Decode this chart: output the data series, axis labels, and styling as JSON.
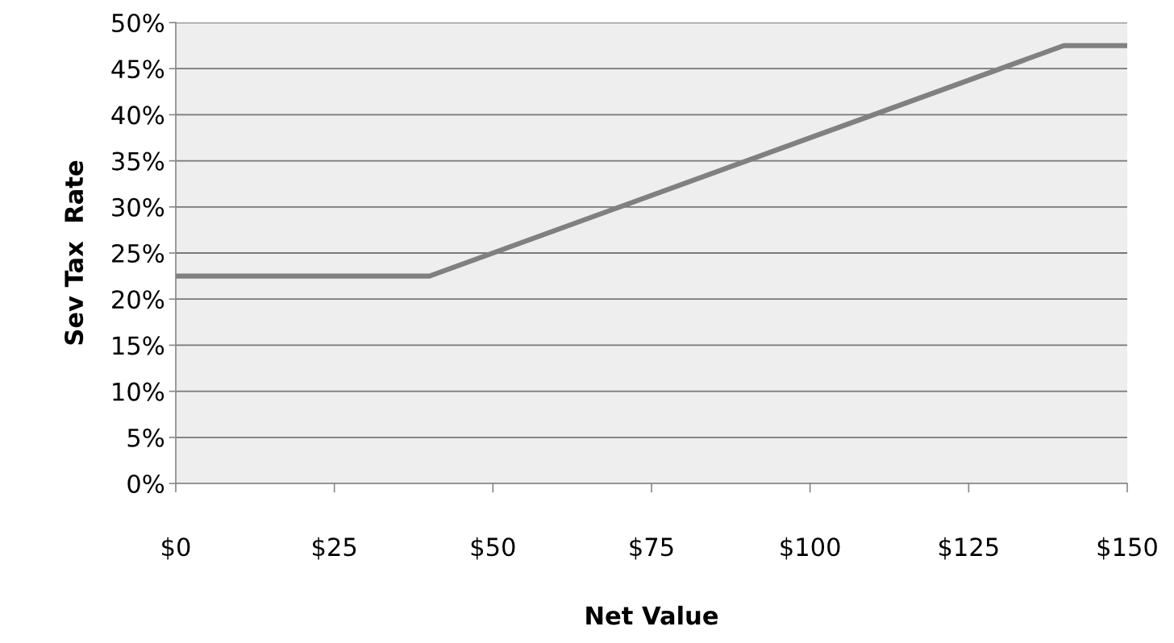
{
  "chart_data": {
    "type": "line",
    "xlabel": "Net Value",
    "ylabel": "Sev Tax  Rate",
    "x": [
      0,
      40,
      140,
      150
    ],
    "series": [
      {
        "color": "#808080",
        "values": [
          22.5,
          22.5,
          47.5,
          47.5
        ]
      }
    ],
    "xlim": [
      0,
      150
    ],
    "xticks": [
      {
        "value": 0,
        "label": "$0"
      },
      {
        "value": 25,
        "label": "$25"
      },
      {
        "value": 50,
        "label": "$50"
      },
      {
        "value": 75,
        "label": "$75"
      },
      {
        "value": 100,
        "label": "$100"
      },
      {
        "value": 125,
        "label": "$125"
      },
      {
        "value": 150,
        "label": "$150"
      }
    ],
    "ylim": [
      0,
      50
    ],
    "yticks": [
      {
        "value": 0,
        "label": "0%"
      },
      {
        "value": 5,
        "label": "5%"
      },
      {
        "value": 10,
        "label": "10%"
      },
      {
        "value": 15,
        "label": "15%"
      },
      {
        "value": 20,
        "label": "20%"
      },
      {
        "value": 25,
        "label": "25%"
      },
      {
        "value": 30,
        "label": "30%"
      },
      {
        "value": 35,
        "label": "35%"
      },
      {
        "value": 40,
        "label": "40%"
      },
      {
        "value": 45,
        "label": "45%"
      },
      {
        "value": 50,
        "label": "50%"
      }
    ],
    "grid": "y",
    "legend": false,
    "marker": "none",
    "line_style": "solid"
  }
}
